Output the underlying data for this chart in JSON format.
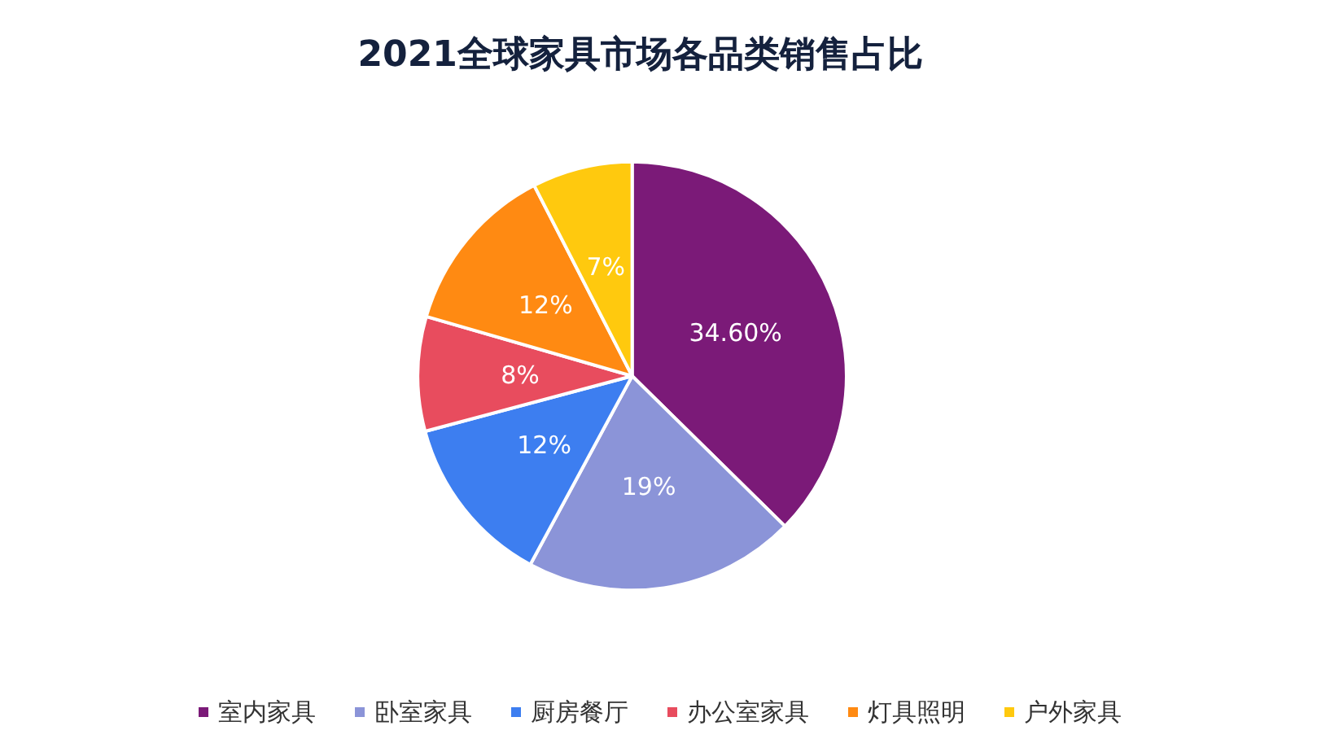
{
  "chart_data": {
    "type": "pie",
    "title": "2021全球家具市场各品类销售占比",
    "categories": [
      "室内家具",
      "卧室家具",
      "厨房餐厅",
      "办公室家具",
      "灯具照明",
      "户外家具"
    ],
    "values": [
      34.6,
      19,
      12,
      8,
      12,
      7
    ],
    "value_labels": [
      "34.60%",
      "19%",
      "12%",
      "8%",
      "12%",
      "7%"
    ],
    "colors": [
      "#7b1a78",
      "#8b94d8",
      "#3d7ef0",
      "#e84c5e",
      "#ff8a12",
      "#ffc90e"
    ],
    "legend": "bottom"
  }
}
